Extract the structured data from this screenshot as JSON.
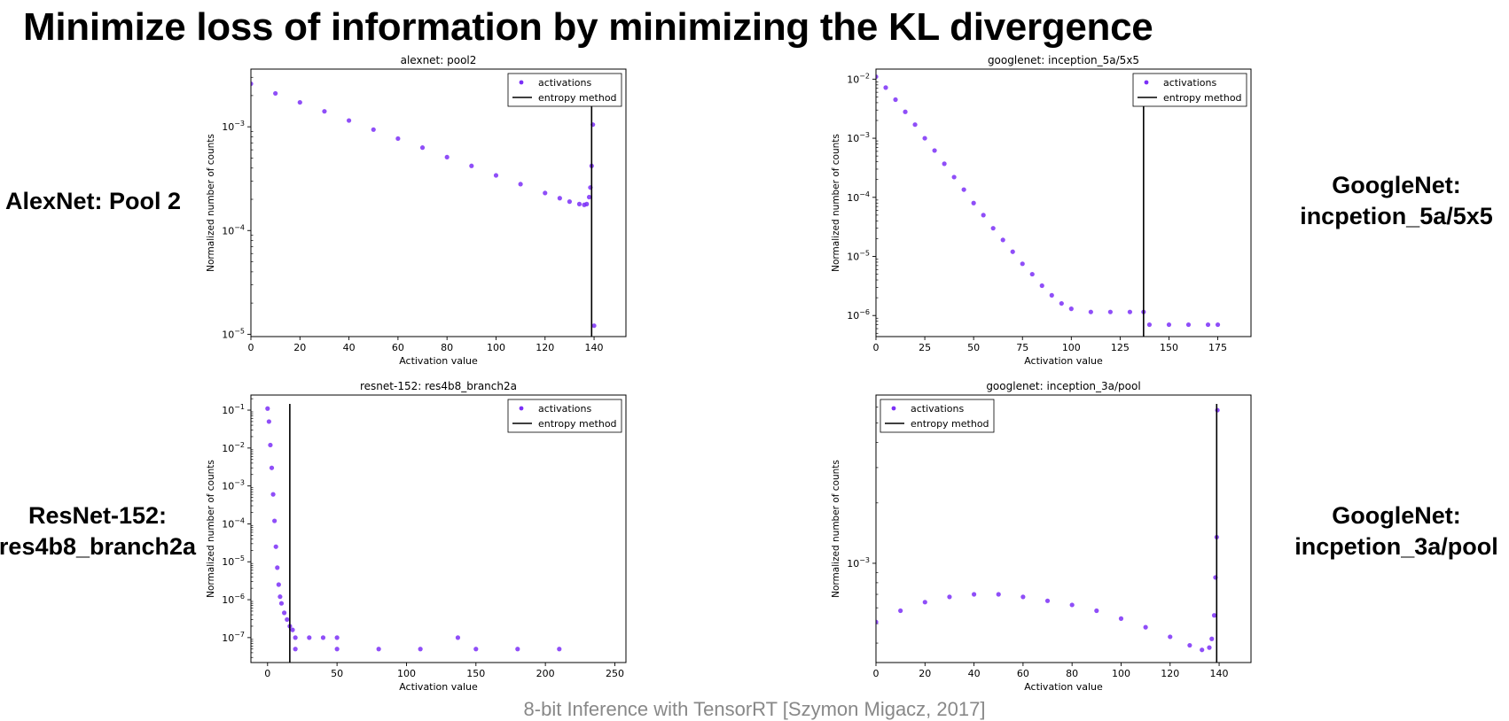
{
  "slide_title": "Minimize loss of information by minimizing the KL divergence",
  "footer": "8-bit Inference with TensorRT [Szymon Migacz, 2017]",
  "colors": {
    "activations": "#7b2ff7",
    "threshold_line": "#000000"
  },
  "side_labels": [
    {
      "lines": [
        "AlexNet: Pool 2"
      ]
    },
    {
      "lines": [
        "GoogleNet:",
        "incpetion_5a/5x5"
      ]
    },
    {
      "lines": [
        "ResNet-152:",
        "res4b8_branch2a"
      ]
    },
    {
      "lines": [
        "GoogleNet:",
        "incpetion_3a/pool"
      ]
    }
  ],
  "chart_data": [
    {
      "type": "scatter",
      "title": "alexnet: pool2",
      "xlabel": "Activation value",
      "ylabel": "Normalized number of counts",
      "yscale": "log",
      "xlim": [
        0,
        153
      ],
      "ylim": [
        9.5e-06,
        0.0036
      ],
      "xticks": [
        0,
        20,
        40,
        60,
        80,
        100,
        120,
        140
      ],
      "yticks": [
        {
          "value": 1e-05,
          "mantissa": "10",
          "exp": "−5"
        },
        {
          "value": 0.0001,
          "mantissa": "10",
          "exp": "−4"
        },
        {
          "value": 0.001,
          "mantissa": "10",
          "exp": "−3"
        }
      ],
      "legend": {
        "position": "top-right",
        "entries": [
          "activations",
          "entropy method"
        ]
      },
      "threshold": 139,
      "series": [
        {
          "name": "activations",
          "points": [
            [
              0,
              0.0026
            ],
            [
              10,
              0.0021
            ],
            [
              20,
              0.00172
            ],
            [
              30,
              0.00141
            ],
            [
              40,
              0.00115
            ],
            [
              50,
              0.00094
            ],
            [
              60,
              0.00077
            ],
            [
              70,
              0.00063
            ],
            [
              80,
              0.00051
            ],
            [
              90,
              0.00042
            ],
            [
              100,
              0.00034
            ],
            [
              110,
              0.00028
            ],
            [
              120,
              0.00023
            ],
            [
              126,
              0.000205
            ],
            [
              130,
              0.00019
            ],
            [
              134,
              0.00018
            ],
            [
              136,
              0.000177
            ],
            [
              137,
              0.00018
            ],
            [
              138,
              0.00021
            ],
            [
              138.5,
              0.00026
            ],
            [
              139,
              0.00042
            ],
            [
              139.5,
              0.00105
            ],
            [
              140,
              1.21e-05
            ]
          ]
        }
      ]
    },
    {
      "type": "scatter",
      "title": "googlenet: inception_5a/5x5",
      "xlabel": "Activation value",
      "ylabel": "Normalized number of counts",
      "yscale": "log",
      "xlim": [
        0,
        192
      ],
      "ylim": [
        4.4e-07,
        0.0148
      ],
      "xticks": [
        0,
        25,
        50,
        75,
        100,
        125,
        150,
        175
      ],
      "yticks": [
        {
          "value": 1e-06,
          "mantissa": "10",
          "exp": "−6"
        },
        {
          "value": 1e-05,
          "mantissa": "10",
          "exp": "−5"
        },
        {
          "value": 0.0001,
          "mantissa": "10",
          "exp": "−4"
        },
        {
          "value": 0.001,
          "mantissa": "10",
          "exp": "−3"
        },
        {
          "value": 0.01,
          "mantissa": "10",
          "exp": "−2"
        }
      ],
      "legend": {
        "position": "top-right",
        "entries": [
          "activations",
          "entropy method"
        ]
      },
      "threshold": 137,
      "series": [
        {
          "name": "activations",
          "points": [
            [
              0,
              0.011
            ],
            [
              5,
              0.0072
            ],
            [
              10,
              0.0045
            ],
            [
              15,
              0.0028
            ],
            [
              20,
              0.0017
            ],
            [
              25,
              0.001
            ],
            [
              30,
              0.00062
            ],
            [
              35,
              0.00037
            ],
            [
              40,
              0.00022
            ],
            [
              45,
              0.000135
            ],
            [
              50,
              8e-05
            ],
            [
              55,
              5e-05
            ],
            [
              60,
              3e-05
            ],
            [
              65,
              1.9e-05
            ],
            [
              70,
              1.2e-05
            ],
            [
              75,
              7.5e-06
            ],
            [
              80,
              5e-06
            ],
            [
              85,
              3.2e-06
            ],
            [
              90,
              2.2e-06
            ],
            [
              95,
              1.6e-06
            ],
            [
              100,
              1.3e-06
            ],
            [
              110,
              1.15e-06
            ],
            [
              120,
              1.15e-06
            ],
            [
              130,
              1.15e-06
            ],
            [
              137,
              1.15e-06
            ],
            [
              140,
              7e-07
            ],
            [
              150,
              7e-07
            ],
            [
              160,
              7e-07
            ],
            [
              170,
              7e-07
            ],
            [
              175,
              7e-07
            ]
          ]
        }
      ]
    },
    {
      "type": "scatter",
      "title": "resnet-152: res4b8_branch2a",
      "xlabel": "Activation value",
      "ylabel": "Normalized number of counts",
      "yscale": "log",
      "xlim": [
        -12,
        258
      ],
      "ylim": [
        2.2e-08,
        0.25
      ],
      "xticks": [
        0,
        50,
        100,
        150,
        200,
        250
      ],
      "yticks": [
        {
          "value": 1e-07,
          "mantissa": "10",
          "exp": "−7"
        },
        {
          "value": 1e-06,
          "mantissa": "10",
          "exp": "−6"
        },
        {
          "value": 1e-05,
          "mantissa": "10",
          "exp": "−5"
        },
        {
          "value": 0.0001,
          "mantissa": "10",
          "exp": "−4"
        },
        {
          "value": 0.001,
          "mantissa": "10",
          "exp": "−3"
        },
        {
          "value": 0.01,
          "mantissa": "10",
          "exp": "−2"
        },
        {
          "value": 0.1,
          "mantissa": "10",
          "exp": "−1"
        }
      ],
      "legend": {
        "position": "top-right",
        "entries": [
          "activations",
          "entropy method"
        ]
      },
      "threshold": 16,
      "series": [
        {
          "name": "activations",
          "points": [
            [
              0,
              0.11
            ],
            [
              1,
              0.05
            ],
            [
              2,
              0.012
            ],
            [
              3,
              0.003
            ],
            [
              4,
              0.0006
            ],
            [
              5,
              0.00012
            ],
            [
              6,
              2.5e-05
            ],
            [
              7,
              7e-06
            ],
            [
              8,
              2.5e-06
            ],
            [
              9,
              1.2e-06
            ],
            [
              10,
              8e-07
            ],
            [
              12,
              4.5e-07
            ],
            [
              14,
              3e-07
            ],
            [
              16,
              2e-07
            ],
            [
              18,
              1.6e-07
            ],
            [
              20,
              1e-07
            ],
            [
              30,
              1e-07
            ],
            [
              40,
              1e-07
            ],
            [
              50,
              1e-07
            ],
            [
              20,
              5e-08
            ],
            [
              50,
              5e-08
            ],
            [
              80,
              5e-08
            ],
            [
              110,
              5e-08
            ],
            [
              137,
              1e-07
            ],
            [
              150,
              5e-08
            ],
            [
              180,
              5e-08
            ],
            [
              210,
              5e-08
            ]
          ]
        }
      ]
    },
    {
      "type": "scatter",
      "title": "googlenet: inception_3a/pool",
      "xlabel": "Activation value",
      "ylabel": "Normalized number of counts",
      "yscale": "log",
      "xlim": [
        0,
        153
      ],
      "ylim": [
        0.00032,
        0.0069
      ],
      "xticks": [
        0,
        20,
        40,
        60,
        80,
        100,
        120,
        140
      ],
      "yticks": [
        {
          "value": 0.001,
          "mantissa": "10",
          "exp": "−3"
        }
      ],
      "legend": {
        "position": "top-left",
        "entries": [
          "activations",
          "entropy method"
        ]
      },
      "threshold": 139,
      "series": [
        {
          "name": "activations",
          "points": [
            [
              0,
              0.00051
            ],
            [
              10,
              0.00058
            ],
            [
              20,
              0.00064
            ],
            [
              30,
              0.00068
            ],
            [
              40,
              0.0007
            ],
            [
              50,
              0.0007
            ],
            [
              60,
              0.00068
            ],
            [
              70,
              0.00065
            ],
            [
              80,
              0.00062
            ],
            [
              90,
              0.00058
            ],
            [
              100,
              0.00053
            ],
            [
              110,
              0.00048
            ],
            [
              120,
              0.00043
            ],
            [
              128,
              0.00039
            ],
            [
              133,
              0.00037
            ],
            [
              136,
              0.00038
            ],
            [
              137,
              0.00042
            ],
            [
              138,
              0.00055
            ],
            [
              138.5,
              0.00085
            ],
            [
              139,
              0.00135
            ],
            [
              139.3,
              0.0058
            ]
          ]
        }
      ]
    }
  ]
}
